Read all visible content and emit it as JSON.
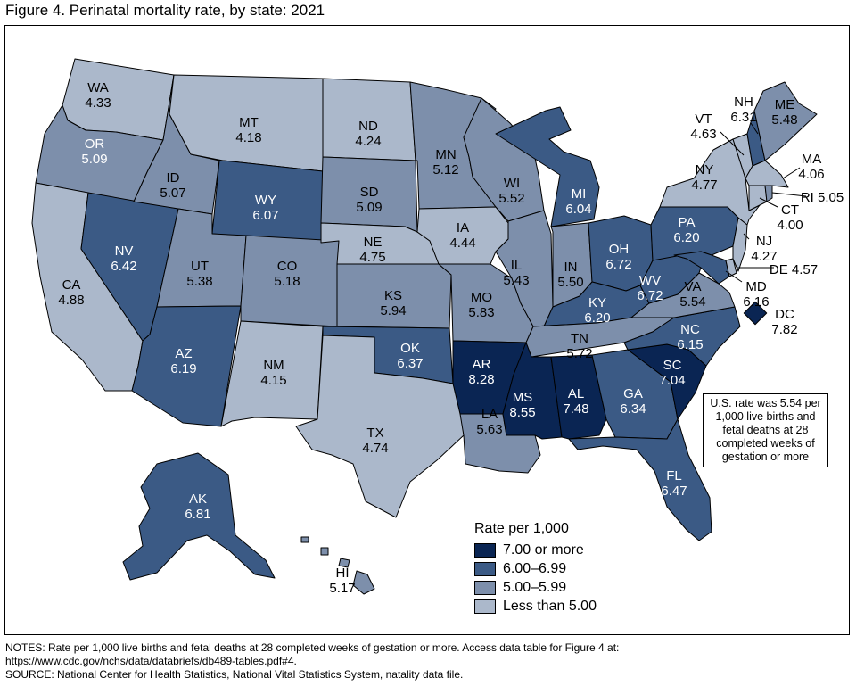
{
  "title": "Figure 4. Perinatal mortality rate, by state: 2021",
  "legend": {
    "title": "Rate per 1,000",
    "items": [
      {
        "label": "7.00 or more",
        "color": "#0a2553"
      },
      {
        "label": "6.00–6.99",
        "color": "#3b5a85"
      },
      {
        "label": "5.00–5.99",
        "color": "#7d8fab"
      },
      {
        "label": "Less than 5.00",
        "color": "#abb8cb"
      }
    ]
  },
  "us_note": "U.S. rate was 5.54 per 1,000 live births and fetal deaths at 28 completed weeks of gestation or more",
  "notes": [
    "NOTES: Rate per 1,000 live births and fetal deaths at 28 completed weeks of gestation or more. Access data table for Figure 4 at: https://www.cdc.gov/nchs/data/databriefs/db489-tables.pdf#4.",
    "SOURCE: National Center for Health Statistics, National Vital Statistics System, natality data file."
  ],
  "states": [
    {
      "abbr": "WA",
      "rate": "4.33"
    },
    {
      "abbr": "OR",
      "rate": "5.09"
    },
    {
      "abbr": "CA",
      "rate": "4.88"
    },
    {
      "abbr": "NV",
      "rate": "6.42"
    },
    {
      "abbr": "ID",
      "rate": "5.07"
    },
    {
      "abbr": "MT",
      "rate": "4.18"
    },
    {
      "abbr": "WY",
      "rate": "6.07"
    },
    {
      "abbr": "UT",
      "rate": "5.38"
    },
    {
      "abbr": "AZ",
      "rate": "6.19"
    },
    {
      "abbr": "CO",
      "rate": "5.18"
    },
    {
      "abbr": "NM",
      "rate": "4.15"
    },
    {
      "abbr": "ND",
      "rate": "4.24"
    },
    {
      "abbr": "SD",
      "rate": "5.09"
    },
    {
      "abbr": "NE",
      "rate": "4.75"
    },
    {
      "abbr": "KS",
      "rate": "5.94"
    },
    {
      "abbr": "OK",
      "rate": "6.37"
    },
    {
      "abbr": "TX",
      "rate": "4.74"
    },
    {
      "abbr": "MN",
      "rate": "5.12"
    },
    {
      "abbr": "IA",
      "rate": "4.44"
    },
    {
      "abbr": "MO",
      "rate": "5.83"
    },
    {
      "abbr": "AR",
      "rate": "8.28"
    },
    {
      "abbr": "LA",
      "rate": "5.63"
    },
    {
      "abbr": "WI",
      "rate": "5.52"
    },
    {
      "abbr": "IL",
      "rate": "5.43"
    },
    {
      "abbr": "MI",
      "rate": "6.04"
    },
    {
      "abbr": "IN",
      "rate": "5.50"
    },
    {
      "abbr": "OH",
      "rate": "6.72"
    },
    {
      "abbr": "KY",
      "rate": "6.20"
    },
    {
      "abbr": "TN",
      "rate": "5.72"
    },
    {
      "abbr": "MS",
      "rate": "8.55"
    },
    {
      "abbr": "AL",
      "rate": "7.48"
    },
    {
      "abbr": "GA",
      "rate": "6.34"
    },
    {
      "abbr": "FL",
      "rate": "6.47"
    },
    {
      "abbr": "SC",
      "rate": "7.04"
    },
    {
      "abbr": "NC",
      "rate": "6.15"
    },
    {
      "abbr": "VA",
      "rate": "5.54"
    },
    {
      "abbr": "WV",
      "rate": "6.72"
    },
    {
      "abbr": "PA",
      "rate": "6.20"
    },
    {
      "abbr": "NY",
      "rate": "4.77"
    },
    {
      "abbr": "VT",
      "rate": "4.63"
    },
    {
      "abbr": "NH",
      "rate": "6.31"
    },
    {
      "abbr": "ME",
      "rate": "5.48"
    },
    {
      "abbr": "MA",
      "rate": "4.06"
    },
    {
      "abbr": "RI",
      "rate": "5.05"
    },
    {
      "abbr": "CT",
      "rate": "4.00"
    },
    {
      "abbr": "NJ",
      "rate": "4.27"
    },
    {
      "abbr": "DE",
      "rate": "4.57"
    },
    {
      "abbr": "MD",
      "rate": "6.16"
    },
    {
      "abbr": "DC",
      "rate": "7.82"
    },
    {
      "abbr": "AK",
      "rate": "6.81"
    },
    {
      "abbr": "HI",
      "rate": "5.17"
    }
  ]
}
